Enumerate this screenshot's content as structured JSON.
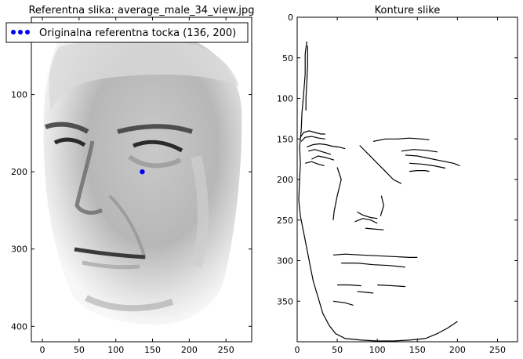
{
  "chart_data": [
    {
      "type": "image-scatter",
      "title": "Referentna slika: average_male_34_view.jpg",
      "xlabel": "",
      "ylabel": "",
      "xlim": [
        -15,
        285
      ],
      "ylim": [
        420,
        0
      ],
      "x_ticks": [
        0,
        50,
        100,
        150,
        200,
        250
      ],
      "y_ticks": [
        100,
        200,
        300,
        400
      ],
      "grid": false,
      "legend": {
        "placement": "top-left",
        "entries": [
          {
            "label": "Originalna referentna tocka (136, 200)",
            "marker": "dot",
            "color": "#0000ff"
          }
        ]
      },
      "image": {
        "content": "grayscale face photograph",
        "extent": [
          0,
          275,
          0,
          405
        ]
      },
      "points": [
        {
          "x": 136,
          "y": 200,
          "color": "#0000ff"
        }
      ]
    },
    {
      "type": "image",
      "title": "Konture slike",
      "xlabel": "",
      "ylabel": "",
      "xlim": [
        0,
        275
      ],
      "ylim": [
        400,
        0
      ],
      "x_ticks": [
        0,
        50,
        100,
        150,
        200,
        250
      ],
      "y_ticks": [
        0,
        50,
        100,
        150,
        200,
        250,
        300,
        350
      ],
      "grid": false,
      "image": {
        "content": "black edge contours of face on white",
        "extent": [
          0,
          275,
          0,
          400
        ]
      },
      "contours": [
        [
          [
            12,
            30
          ],
          [
            10,
            45
          ],
          [
            10,
            70
          ],
          [
            8,
            95
          ],
          [
            6,
            118
          ],
          [
            5,
            140
          ],
          [
            3,
            160
          ],
          [
            4,
            180
          ],
          [
            3,
            200
          ],
          [
            2,
            225
          ],
          [
            4,
            245
          ],
          [
            8,
            265
          ],
          [
            12,
            285
          ],
          [
            16,
            305
          ],
          [
            20,
            325
          ],
          [
            26,
            345
          ],
          [
            32,
            365
          ],
          [
            40,
            380
          ],
          [
            48,
            390
          ],
          [
            60,
            396
          ],
          [
            80,
            398
          ],
          [
            100,
            399
          ],
          [
            120,
            399
          ],
          [
            140,
            398
          ],
          [
            160,
            396
          ],
          [
            175,
            390
          ],
          [
            188,
            383
          ],
          [
            200,
            375
          ]
        ],
        [
          [
            13,
            35
          ],
          [
            13,
            60
          ],
          [
            12,
            80
          ],
          [
            11,
            100
          ],
          [
            11,
            115
          ]
        ],
        [
          [
            4,
            148
          ],
          [
            8,
            142
          ],
          [
            15,
            140
          ],
          [
            22,
            142
          ],
          [
            30,
            144
          ],
          [
            35,
            144
          ]
        ],
        [
          [
            5,
            153
          ],
          [
            10,
            148
          ],
          [
            18,
            147
          ],
          [
            27,
            149
          ],
          [
            35,
            150
          ]
        ],
        [
          [
            12,
            160
          ],
          [
            20,
            157
          ],
          [
            28,
            156
          ],
          [
            36,
            157
          ],
          [
            44,
            159
          ],
          [
            52,
            160
          ],
          [
            60,
            162
          ]
        ],
        [
          [
            14,
            165
          ],
          [
            22,
            163
          ],
          [
            32,
            166
          ],
          [
            42,
            169
          ]
        ],
        [
          [
            18,
            175
          ],
          [
            26,
            171
          ],
          [
            36,
            173
          ],
          [
            46,
            176
          ]
        ],
        [
          [
            10,
            180
          ],
          [
            18,
            178
          ],
          [
            26,
            181
          ],
          [
            34,
            183
          ]
        ],
        [
          [
            50,
            185
          ],
          [
            55,
            200
          ],
          [
            50,
            220
          ],
          [
            46,
            240
          ],
          [
            45,
            250
          ]
        ],
        [
          [
            78,
            158
          ],
          [
            90,
            170
          ],
          [
            100,
            180
          ],
          [
            110,
            190
          ],
          [
            120,
            200
          ],
          [
            130,
            205
          ]
        ],
        [
          [
            95,
            153
          ],
          [
            110,
            150
          ],
          [
            125,
            150
          ],
          [
            140,
            149
          ],
          [
            155,
            150
          ],
          [
            165,
            151
          ]
        ],
        [
          [
            130,
            165
          ],
          [
            145,
            163
          ],
          [
            160,
            164
          ],
          [
            175,
            166
          ]
        ],
        [
          [
            135,
            170
          ],
          [
            150,
            171
          ],
          [
            165,
            174
          ],
          [
            180,
            177
          ],
          [
            195,
            180
          ],
          [
            203,
            183
          ]
        ],
        [
          [
            140,
            180
          ],
          [
            155,
            181
          ],
          [
            170,
            183
          ],
          [
            185,
            186
          ]
        ],
        [
          [
            140,
            190
          ],
          [
            150,
            189
          ],
          [
            160,
            189
          ],
          [
            165,
            190
          ]
        ],
        [
          [
            105,
            220
          ],
          [
            108,
            232
          ],
          [
            104,
            245
          ]
        ],
        [
          [
            75,
            240
          ],
          [
            82,
            244
          ],
          [
            92,
            247
          ],
          [
            100,
            248
          ]
        ],
        [
          [
            72,
            252
          ],
          [
            82,
            248
          ],
          [
            92,
            250
          ],
          [
            100,
            254
          ]
        ],
        [
          [
            85,
            260
          ],
          [
            95,
            261
          ],
          [
            108,
            262
          ]
        ],
        [
          [
            45,
            293
          ],
          [
            60,
            292
          ],
          [
            80,
            293
          ],
          [
            100,
            294
          ],
          [
            120,
            295
          ],
          [
            140,
            296
          ],
          [
            150,
            296
          ]
        ],
        [
          [
            55,
            303
          ],
          [
            75,
            303
          ],
          [
            95,
            305
          ],
          [
            115,
            306
          ],
          [
            135,
            308
          ]
        ],
        [
          [
            50,
            330
          ],
          [
            65,
            330
          ],
          [
            80,
            331
          ]
        ],
        [
          [
            45,
            350
          ],
          [
            60,
            352
          ],
          [
            70,
            355
          ]
        ],
        [
          [
            100,
            330
          ],
          [
            120,
            331
          ],
          [
            135,
            332
          ]
        ],
        [
          [
            75,
            338
          ],
          [
            85,
            339
          ],
          [
            95,
            340
          ]
        ]
      ]
    }
  ]
}
